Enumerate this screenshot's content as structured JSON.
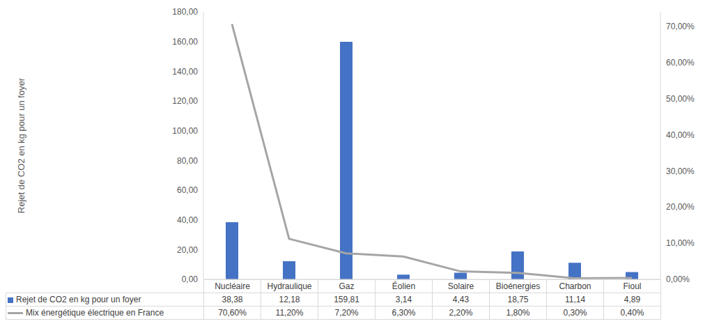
{
  "chart_data": {
    "type": "bar",
    "ylabel": "Rejet de CO2 en kg pour un foyer",
    "categories": [
      "Nucléaire",
      "Hydraulique",
      "Gaz",
      "Éolien",
      "Solaire",
      "Bioénergies",
      "Charbon",
      "Fioul"
    ],
    "series": [
      {
        "name": "Rejet de CO2 en kg pour un foyer",
        "type": "bar",
        "color": "#4472c4",
        "values": [
          38.38,
          12.18,
          159.81,
          3.14,
          4.43,
          18.75,
          11.14,
          4.89
        ],
        "value_labels": [
          "38,38",
          "12,18",
          "159,81",
          "3,14",
          "4,43",
          "18,75",
          "11,14",
          "4,89"
        ]
      },
      {
        "name": "Mix énergétique électrique en France",
        "type": "line",
        "axis": "y2",
        "color": "#a5a5a5",
        "values": [
          70.6,
          11.2,
          7.2,
          6.3,
          2.2,
          1.8,
          0.3,
          0.4
        ],
        "value_labels": [
          "70,60%",
          "11,20%",
          "7,20%",
          "6,30%",
          "2,20%",
          "1,80%",
          "0,30%",
          "0,40%"
        ]
      }
    ],
    "ylim": [
      0,
      180
    ],
    "yticks": [
      {
        "value": 0,
        "label": "0,00"
      },
      {
        "value": 20,
        "label": "20,00"
      },
      {
        "value": 40,
        "label": "40,00"
      },
      {
        "value": 60,
        "label": "60,00"
      },
      {
        "value": 80,
        "label": "80,00"
      },
      {
        "value": 100,
        "label": "100,00"
      },
      {
        "value": 120,
        "label": "120,00"
      },
      {
        "value": 140,
        "label": "140,00"
      },
      {
        "value": 160,
        "label": "160,00"
      },
      {
        "value": 180,
        "label": "180,00"
      }
    ],
    "y2lim": [
      0,
      74
    ],
    "y2ticks": [
      {
        "value": 0,
        "label": "0,00%"
      },
      {
        "value": 10,
        "label": "10,00%"
      },
      {
        "value": 20,
        "label": "20,00%"
      },
      {
        "value": 30,
        "label": "30,00%"
      },
      {
        "value": 40,
        "label": "40,00%"
      },
      {
        "value": 50,
        "label": "50,00%"
      },
      {
        "value": 60,
        "label": "60,00%"
      },
      {
        "value": 70,
        "label": "70,00%"
      }
    ],
    "grid": false
  }
}
